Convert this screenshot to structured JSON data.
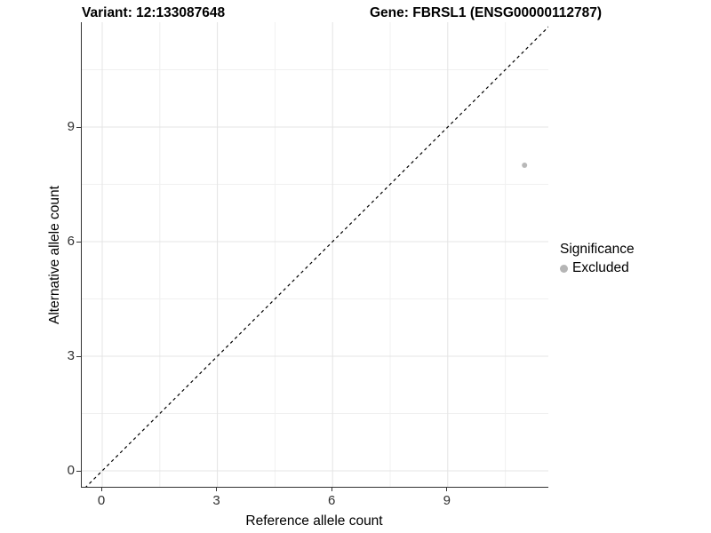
{
  "titles": {
    "left": "Variant: 12:133087648",
    "right": "Gene: FBRSL1 (ENSG00000112787)"
  },
  "chart_data": {
    "type": "scatter",
    "title_left": "Variant: 12:133087648",
    "title_right": "Gene: FBRSL1 (ENSG00000112787)",
    "xlabel": "Reference allele count",
    "ylabel": "Alternative allele count",
    "x_ticks": [
      0,
      3,
      6,
      9
    ],
    "y_ticks": [
      0,
      3,
      6,
      9
    ],
    "x_minor_ticks": [
      1.5,
      4.5,
      7.5,
      10.5
    ],
    "y_minor_ticks": [
      1.5,
      4.5,
      7.5,
      10.5
    ],
    "xlim": [
      -0.55,
      11.65
    ],
    "ylim": [
      -0.45,
      11.75
    ],
    "grid": true,
    "points": [
      {
        "x": 11,
        "y": 8,
        "series": "Excluded",
        "color": "#b8b8b8",
        "radius": 3
      }
    ],
    "reference_line": {
      "equation": "y = x",
      "style": "dashed",
      "color": "#000000"
    },
    "legend": {
      "position": "right",
      "title": "Significance",
      "entries": [
        {
          "label": "Excluded",
          "color": "#b5b5b5"
        }
      ]
    },
    "colors": {
      "axis_line": "#333333",
      "grid_major": "#e4e4e4",
      "grid_minor": "#f0f0f0",
      "tick_label": "#303030",
      "background": "#ffffff"
    }
  }
}
